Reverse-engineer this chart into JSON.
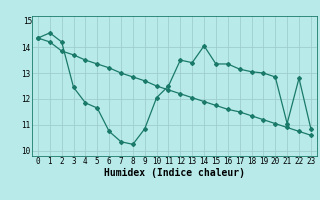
{
  "title": "",
  "xlabel": "Humidex (Indice chaleur)",
  "ylabel": "",
  "bg_color": "#b8eaea",
  "grid_color": "#a0cece",
  "line_color": "#1a7a6a",
  "series1_x": [
    0,
    1,
    2,
    3,
    4,
    5,
    6,
    7,
    8,
    9,
    10,
    11,
    12,
    13,
    14,
    15,
    16,
    17,
    18,
    19,
    20,
    21,
    22,
    23
  ],
  "series1_y": [
    14.35,
    14.55,
    14.2,
    12.45,
    11.85,
    11.65,
    10.75,
    10.35,
    10.25,
    10.85,
    12.05,
    12.5,
    13.5,
    13.4,
    14.05,
    13.35,
    13.35,
    13.15,
    13.05,
    13.0,
    12.85,
    11.05,
    12.8,
    10.85
  ],
  "series2_x": [
    0,
    1,
    2,
    3,
    4,
    5,
    6,
    7,
    8,
    9,
    10,
    11,
    12,
    13,
    14,
    15,
    16,
    17,
    18,
    19,
    20,
    21,
    22,
    23
  ],
  "series2_y": [
    14.35,
    14.2,
    13.85,
    13.7,
    13.5,
    13.35,
    13.2,
    13.0,
    12.85,
    12.7,
    12.5,
    12.35,
    12.2,
    12.05,
    11.9,
    11.75,
    11.6,
    11.5,
    11.35,
    11.2,
    11.05,
    10.9,
    10.75,
    10.6
  ],
  "ylim": [
    9.8,
    15.2
  ],
  "xlim": [
    -0.5,
    23.5
  ],
  "yticks": [
    10,
    11,
    12,
    13,
    14
  ],
  "xticks": [
    0,
    1,
    2,
    3,
    4,
    5,
    6,
    7,
    8,
    9,
    10,
    11,
    12,
    13,
    14,
    15,
    16,
    17,
    18,
    19,
    20,
    21,
    22,
    23
  ],
  "marker": "D",
  "marker_size": 2.0,
  "line_width": 0.9,
  "xlabel_fontsize": 7,
  "tick_fontsize": 5.5
}
